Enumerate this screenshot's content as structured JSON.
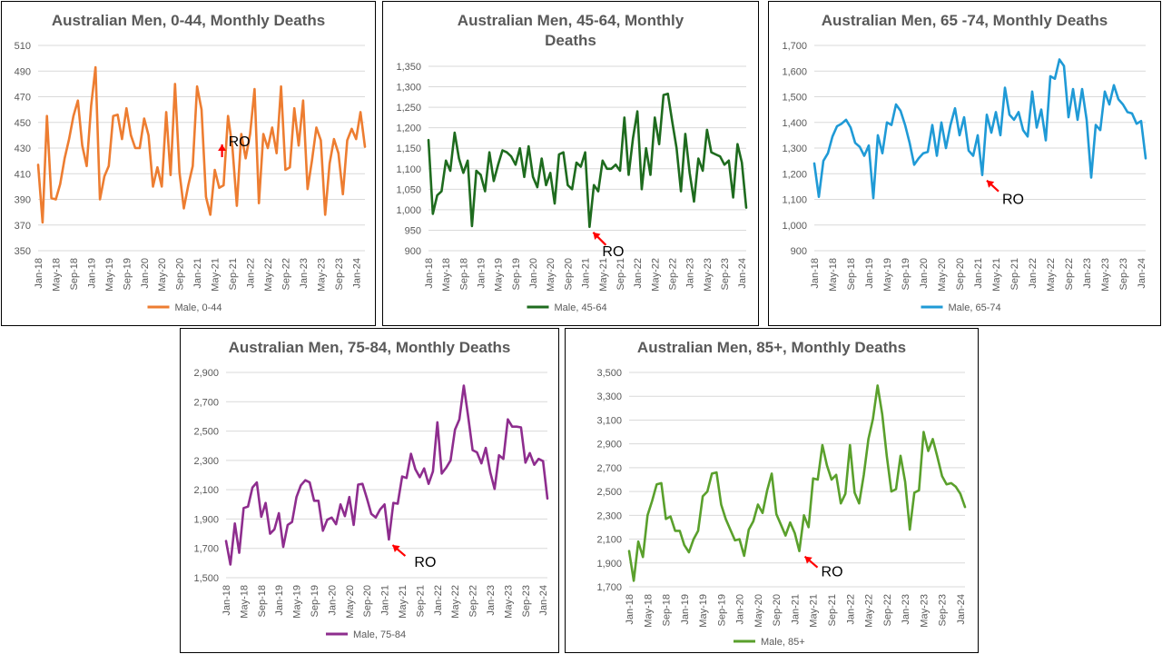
{
  "chart_data": [
    {
      "type": "line",
      "title_lines": [
        "Australian Men, 0-44, Monthly Deaths"
      ],
      "series": [
        {
          "name": "Male, 0-44",
          "color": "#ED7D31",
          "values": [
            417,
            372,
            455,
            391,
            390,
            402,
            422,
            437,
            455,
            467,
            432,
            416,
            463,
            493,
            390,
            408,
            416,
            455,
            456,
            437,
            461,
            440,
            430,
            430,
            453,
            440,
            400,
            415,
            400,
            458,
            409,
            480,
            411,
            383,
            401,
            416,
            478,
            460,
            392,
            378,
            413,
            399,
            401,
            455,
            430,
            385,
            441,
            422,
            441,
            476,
            387,
            441,
            430,
            446,
            426,
            478,
            413,
            415,
            461,
            432,
            467,
            398,
            420,
            446,
            436,
            378,
            418,
            437,
            426,
            394,
            436,
            445,
            437,
            458,
            431
          ]
        }
      ],
      "x_tick_labels": [
        "Jan-18",
        "May-18",
        "Sep-18",
        "Jan-19",
        "May-19",
        "Sep-19",
        "Jan-20",
        "May-20",
        "Sep-20",
        "Jan-21",
        "May-21",
        "Sep-21",
        "Jan-22",
        "May-22",
        "Sep-22",
        "Jan-23",
        "May-23",
        "Sep-23",
        "Jan-24"
      ],
      "y_ticks": [
        350,
        370,
        390,
        410,
        430,
        450,
        470,
        490,
        510
      ],
      "ylim": [
        350,
        510
      ],
      "annotation": {
        "text": "RO",
        "index": 40
      }
    },
    {
      "type": "line",
      "title_lines": [
        "Australian Men, 45-64, Monthly",
        "Deaths"
      ],
      "series": [
        {
          "name": "Male, 45-64",
          "color": "#1E6B1E",
          "values": [
            1170,
            990,
            1035,
            1045,
            1120,
            1095,
            1188,
            1125,
            1090,
            1120,
            960,
            1095,
            1085,
            1045,
            1140,
            1070,
            1110,
            1145,
            1140,
            1130,
            1110,
            1150,
            1080,
            1155,
            1080,
            1055,
            1125,
            1060,
            1090,
            1015,
            1135,
            1140,
            1060,
            1050,
            1115,
            1105,
            1140,
            958,
            1060,
            1045,
            1120,
            1100,
            1100,
            1110,
            1095,
            1225,
            1085,
            1175,
            1240,
            1050,
            1150,
            1085,
            1225,
            1160,
            1280,
            1283,
            1215,
            1150,
            1045,
            1185,
            1090,
            1020,
            1125,
            1095,
            1195,
            1140,
            1135,
            1130,
            1110,
            1120,
            1030,
            1160,
            1115,
            1005
          ]
        }
      ],
      "x_tick_labels": [
        "Jan-18",
        "May-18",
        "Sep-18",
        "Jan-19",
        "May-19",
        "Sep-19",
        "Jan-20",
        "May-20",
        "Sep-20",
        "Jan-21",
        "May-21",
        "Sep-21",
        "Jan-22",
        "May-22",
        "Sep-22",
        "Jan-23",
        "May-23",
        "Sep-23",
        "Jan-24"
      ],
      "y_ticks": [
        900,
        950,
        1000,
        1050,
        1100,
        1150,
        1200,
        1250,
        1300,
        1350
      ],
      "ylim": [
        900,
        1350
      ],
      "annotation": {
        "text": "RO",
        "index": 37
      }
    },
    {
      "type": "line",
      "title_lines": [
        "Australian Men, 65 -74, Monthly Deaths"
      ],
      "series": [
        {
          "name": "Male, 65-74",
          "color": "#1F9AD6",
          "values": [
            1240,
            1110,
            1250,
            1280,
            1345,
            1385,
            1395,
            1410,
            1380,
            1320,
            1305,
            1270,
            1310,
            1105,
            1350,
            1280,
            1400,
            1390,
            1470,
            1445,
            1390,
            1320,
            1235,
            1260,
            1280,
            1285,
            1390,
            1270,
            1400,
            1300,
            1390,
            1455,
            1350,
            1420,
            1290,
            1270,
            1350,
            1195,
            1430,
            1360,
            1440,
            1350,
            1535,
            1430,
            1410,
            1440,
            1370,
            1345,
            1520,
            1380,
            1450,
            1330,
            1580,
            1570,
            1645,
            1620,
            1420,
            1530,
            1410,
            1530,
            1410,
            1185,
            1390,
            1370,
            1520,
            1470,
            1545,
            1490,
            1470,
            1440,
            1435,
            1395,
            1405,
            1260
          ]
        }
      ],
      "x_tick_labels": [
        "Jan-18",
        "May-18",
        "Sep-18",
        "Jan-19",
        "May-19",
        "Sep-19",
        "Jan-20",
        "May-20",
        "Sep-20",
        "Jan-21",
        "May-21",
        "Sep-21",
        "Jan-22",
        "May-22",
        "Sep-22",
        "Jan-23",
        "May-23",
        "Sep-23",
        "Jan-24"
      ],
      "y_ticks": [
        900,
        1000,
        1100,
        1200,
        1300,
        1400,
        1500,
        1600,
        1700
      ],
      "ylim": [
        900,
        1700
      ],
      "annotation": {
        "text": "RO",
        "index": 37
      }
    },
    {
      "type": "line",
      "title_lines": [
        "Australian Men, 75-84, Monthly Deaths"
      ],
      "series": [
        {
          "name": "Male, 75-84",
          "color": "#8E2D8E",
          "values": [
            1750,
            1590,
            1870,
            1670,
            1975,
            1985,
            2115,
            2150,
            1915,
            2010,
            1800,
            1830,
            1940,
            1710,
            1860,
            1880,
            2050,
            2130,
            2165,
            2150,
            2025,
            2025,
            1820,
            1895,
            1910,
            1865,
            2000,
            1920,
            2050,
            1860,
            2135,
            2140,
            2040,
            1935,
            1910,
            1965,
            2000,
            1760,
            2010,
            2005,
            2190,
            2180,
            2345,
            2240,
            2185,
            2245,
            2140,
            2225,
            2560,
            2210,
            2250,
            2300,
            2510,
            2580,
            2810,
            2600,
            2370,
            2355,
            2280,
            2385,
            2220,
            2105,
            2335,
            2310,
            2580,
            2530,
            2530,
            2525,
            2285,
            2350,
            2270,
            2310,
            2295,
            2040
          ]
        }
      ],
      "x_tick_labels": [
        "Jan-18",
        "May-18",
        "Sep-18",
        "Jan-19",
        "May-19",
        "Sep-19",
        "Jan-20",
        "May-20",
        "Sep-20",
        "Jan-21",
        "May-21",
        "Sep-21",
        "Jan-22",
        "May-22",
        "Sep-22",
        "Jan-23",
        "May-23",
        "Sep-23",
        "Jan-24"
      ],
      "y_ticks": [
        1500,
        1700,
        1900,
        2100,
        2300,
        2500,
        2700,
        2900
      ],
      "ylim": [
        1500,
        2900
      ],
      "annotation": {
        "text": "RO",
        "index": 37
      }
    },
    {
      "type": "line",
      "title_lines": [
        "Australian Men, 85+, Monthly Deaths"
      ],
      "series": [
        {
          "name": "Male, 85+",
          "color": "#5AA02C",
          "values": [
            2000,
            1750,
            2080,
            1950,
            2300,
            2420,
            2560,
            2570,
            2270,
            2290,
            2170,
            2170,
            2050,
            1990,
            2100,
            2170,
            2460,
            2500,
            2650,
            2660,
            2390,
            2270,
            2180,
            2090,
            2100,
            1960,
            2180,
            2250,
            2390,
            2320,
            2510,
            2650,
            2310,
            2220,
            2130,
            2240,
            2150,
            2000,
            2300,
            2200,
            2610,
            2600,
            2890,
            2720,
            2600,
            2640,
            2400,
            2480,
            2890,
            2490,
            2400,
            2640,
            2940,
            3110,
            3390,
            3150,
            2800,
            2500,
            2520,
            2800,
            2580,
            2180,
            2490,
            2510,
            3000,
            2840,
            2940,
            2790,
            2630,
            2560,
            2570,
            2540,
            2480,
            2370
          ]
        }
      ],
      "x_tick_labels": [
        "Jan-18",
        "May-18",
        "Sep-18",
        "Jan-19",
        "May-19",
        "Sep-19",
        "Jan-20",
        "May-20",
        "Sep-20",
        "Jan-21",
        "May-21",
        "Sep-21",
        "Jan-22",
        "May-22",
        "Sep-22",
        "Jan-23",
        "May-23",
        "Sep-23",
        "Jan-24"
      ],
      "y_ticks": [
        1700,
        1900,
        2100,
        2300,
        2500,
        2700,
        2900,
        3100,
        3300,
        3500
      ],
      "ylim": [
        1700,
        3500
      ],
      "annotation": {
        "text": "RO",
        "index": 37
      }
    }
  ],
  "annotation_arrow_color": "#FF0000"
}
